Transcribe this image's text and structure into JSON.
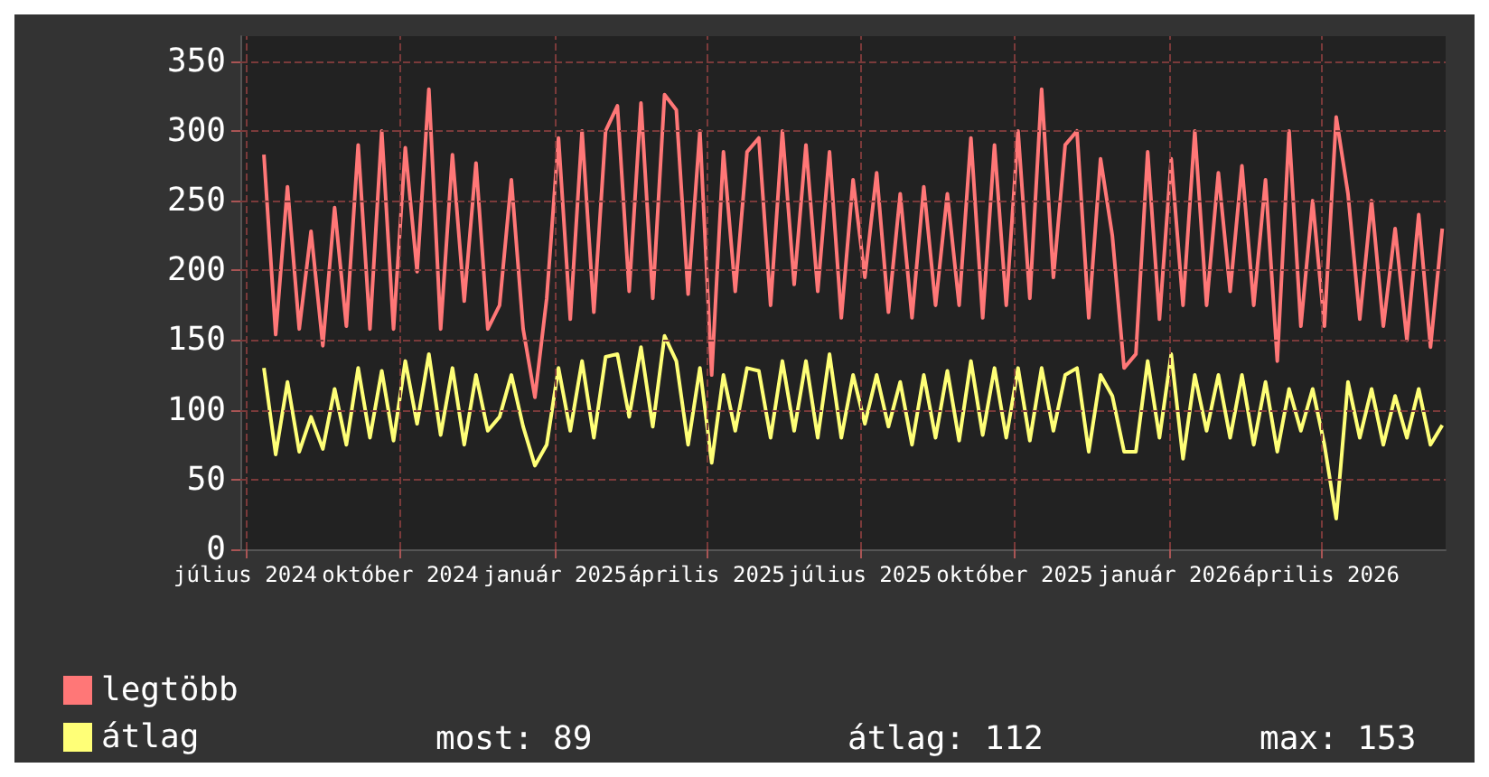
{
  "chart_data": {
    "type": "line",
    "x": [
      "2024-07-12",
      "2024-07-19",
      "2024-07-26",
      "2024-08-02",
      "2024-08-09",
      "2024-08-16",
      "2024-08-23",
      "2024-08-30",
      "2024-09-06",
      "2024-09-13",
      "2024-09-20",
      "2024-09-27",
      "2024-10-04",
      "2024-10-11",
      "2024-10-18",
      "2024-10-25",
      "2024-11-01",
      "2024-11-08",
      "2024-11-15",
      "2024-11-22",
      "2024-11-29",
      "2024-12-06",
      "2024-12-13",
      "2024-12-20",
      "2024-12-27",
      "2025-01-03",
      "2025-01-10",
      "2025-01-17",
      "2025-01-24",
      "2025-01-31",
      "2025-02-07",
      "2025-02-14",
      "2025-02-21",
      "2025-02-28",
      "2025-03-07",
      "2025-03-14",
      "2025-03-21",
      "2025-03-28",
      "2025-04-04",
      "2025-04-11",
      "2025-04-18",
      "2025-04-25",
      "2025-05-02",
      "2025-05-09",
      "2025-05-16",
      "2025-05-23",
      "2025-05-30",
      "2025-06-06",
      "2025-06-13",
      "2025-06-20",
      "2025-06-27",
      "2025-07-04",
      "2025-07-11",
      "2025-07-18",
      "2025-07-25",
      "2025-08-01",
      "2025-08-08",
      "2025-08-15",
      "2025-08-22",
      "2025-08-29",
      "2025-09-05",
      "2025-09-12",
      "2025-09-19",
      "2025-09-26",
      "2025-10-03",
      "2025-10-10",
      "2025-10-17",
      "2025-10-24",
      "2025-10-31",
      "2025-11-07",
      "2025-11-14",
      "2025-11-21",
      "2025-11-28",
      "2025-12-05",
      "2025-12-12",
      "2025-12-19",
      "2025-12-26",
      "2026-01-02",
      "2026-01-09",
      "2026-01-16",
      "2026-01-23",
      "2026-01-30",
      "2026-02-06",
      "2026-02-13",
      "2026-02-20",
      "2026-02-27",
      "2026-03-06",
      "2026-03-13",
      "2026-03-20",
      "2026-03-27",
      "2026-04-03",
      "2026-04-10",
      "2026-04-17",
      "2026-04-24",
      "2026-05-01",
      "2026-05-08",
      "2026-05-15",
      "2026-05-22",
      "2026-05-29",
      "2026-06-05",
      "2026-06-12"
    ],
    "series": [
      {
        "name": "legtöbb",
        "color": "#ff7777",
        "values": [
          283,
          154,
          260,
          158,
          228,
          146,
          245,
          160,
          290,
          158,
          300,
          158,
          288,
          199,
          330,
          158,
          283,
          178,
          277,
          158,
          175,
          265,
          158,
          109,
          180,
          295,
          165,
          300,
          170,
          300,
          318,
          185,
          320,
          180,
          326,
          315,
          183,
          300,
          125,
          285,
          185,
          285,
          295,
          175,
          300,
          190,
          290,
          185,
          285,
          166,
          265,
          195,
          270,
          170,
          255,
          166,
          260,
          175,
          255,
          175,
          295,
          166,
          290,
          175,
          300,
          180,
          330,
          195,
          290,
          300,
          166,
          280,
          225,
          130,
          140,
          285,
          165,
          280,
          175,
          300,
          175,
          270,
          185,
          275,
          175,
          265,
          135,
          300,
          160,
          250,
          160,
          310,
          255,
          165,
          250,
          160,
          230,
          150,
          240,
          145,
          230
        ]
      },
      {
        "name": "átlag",
        "color": "#ffff77",
        "values": [
          130,
          68,
          120,
          70,
          95,
          72,
          115,
          75,
          130,
          80,
          128,
          78,
          135,
          90,
          140,
          82,
          130,
          75,
          125,
          85,
          95,
          125,
          88,
          60,
          75,
          130,
          85,
          135,
          80,
          138,
          140,
          95,
          145,
          88,
          153,
          135,
          75,
          130,
          62,
          125,
          85,
          130,
          128,
          80,
          135,
          85,
          135,
          80,
          140,
          80,
          125,
          90,
          125,
          88,
          120,
          75,
          125,
          80,
          128,
          78,
          135,
          82,
          130,
          80,
          130,
          78,
          130,
          85,
          125,
          130,
          70,
          125,
          110,
          70,
          70,
          135,
          80,
          140,
          65,
          125,
          85,
          125,
          80,
          125,
          75,
          120,
          70,
          115,
          85,
          115,
          75,
          22,
          120,
          80,
          115,
          75,
          110,
          80,
          115,
          75,
          89
        ]
      }
    ],
    "xlim": [
      "2024-06-28",
      "2026-06-14"
    ],
    "xticks": [
      {
        "value": "2024-07-01",
        "label": "július 2024"
      },
      {
        "value": "2024-10-01",
        "label": "október 2024"
      },
      {
        "value": "2025-01-01",
        "label": "január 2025"
      },
      {
        "value": "2025-04-01",
        "label": "április 2025"
      },
      {
        "value": "2025-07-01",
        "label": "július 2025"
      },
      {
        "value": "2025-10-01",
        "label": "október 2025"
      },
      {
        "value": "2026-01-01",
        "label": "január 2026"
      },
      {
        "value": "2026-04-01",
        "label": "április 2026"
      }
    ],
    "ylim": [
      0,
      368
    ],
    "yticks": [
      0,
      50,
      100,
      150,
      200,
      250,
      300,
      350
    ],
    "grid": true,
    "legend": "bottom left",
    "annotations": [
      "most: 89",
      "átlag: 112",
      "max: 153"
    ]
  }
}
